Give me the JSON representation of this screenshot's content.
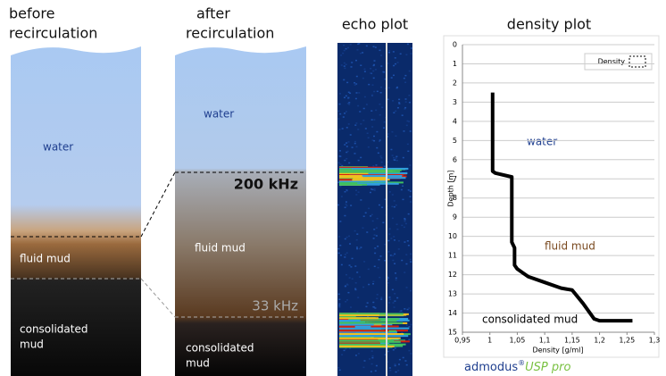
{
  "panels": [
    {
      "title_lines": [
        "before",
        "recirculation"
      ],
      "labels": [
        "water",
        "fluid mud",
        "consolidated",
        "mud"
      ]
    },
    {
      "title_lines": [
        "after",
        "recirculation"
      ],
      "labels": [
        "water",
        "200 kHz",
        "fluid mud",
        "33 kHz",
        "consolidated",
        "mud"
      ]
    },
    {
      "title": "echo plot"
    }
  ],
  "chart_data": {
    "type": "line",
    "title": "density plot",
    "x_label": "Density [g/ml]",
    "y_label": "Depth [m]",
    "xlim": [
      0.95,
      1.3
    ],
    "ylim": [
      15,
      0
    ],
    "xticks": [
      {
        "value": 0.95,
        "label": "0,95"
      },
      1,
      {
        "value": 1.05,
        "label": "1,05"
      },
      {
        "value": 1.1,
        "label": "1,1"
      },
      {
        "value": 1.15,
        "label": "1,15"
      },
      {
        "value": 1.2,
        "label": "1,2"
      },
      {
        "value": 1.25,
        "label": "1,25"
      },
      {
        "value": 1.3,
        "label": "1,3"
      }
    ],
    "yticks": [
      0,
      1,
      2,
      3,
      4,
      5,
      6,
      7,
      8,
      9,
      10,
      11,
      12,
      13,
      14,
      15
    ],
    "grid": true,
    "legend": "upper right",
    "annotations": [
      "water",
      "fluid mud",
      "consolidated mud"
    ],
    "series": [
      {
        "name": "Density",
        "color": "#000000",
        "x": [
          1.005,
          1.005,
          1.01,
          1.04,
          1.04,
          1.045,
          1.045,
          1.05,
          1.06,
          1.07,
          1.1,
          1.13,
          1.15,
          1.17,
          1.19,
          1.2,
          1.26
        ],
        "values": [
          2.5,
          6.6,
          6.7,
          6.9,
          10.3,
          10.6,
          11.5,
          11.7,
          11.9,
          12.1,
          12.4,
          12.7,
          12.8,
          13.5,
          14.3,
          14.4,
          14.4
        ]
      }
    ]
  },
  "brand": {
    "name": "admodus",
    "mark": "®",
    "product": "USP pro"
  }
}
